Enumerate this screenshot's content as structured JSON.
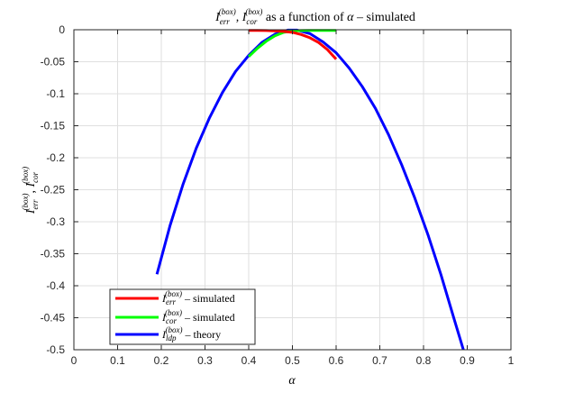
{
  "chart_data": {
    "type": "line",
    "title": {
      "sym1": "I",
      "sub1": "err",
      "sup1": "(box)",
      "sep": ", ",
      "sym2": "I",
      "sub2": "cor",
      "sup2": "(box)",
      "rest": " as a function of ",
      "alpha": "α",
      "tail": " – simulated"
    },
    "xlabel": "α",
    "ylabel": {
      "sym1": "I",
      "sub1": "err",
      "sup1": "(box)",
      "sep": ", ",
      "sym2": "I",
      "sub2": "cor",
      "sup2": "(box)"
    },
    "xlim": [
      0,
      1
    ],
    "ylim": [
      -0.5,
      0
    ],
    "xticks": [
      0,
      0.1,
      0.2,
      0.3,
      0.4,
      0.5,
      0.6,
      0.7,
      0.8,
      0.9,
      1
    ],
    "xtick_labels": [
      "0",
      "0.1",
      "0.2",
      "0.3",
      "0.4",
      "0.5",
      "0.6",
      "0.7",
      "0.8",
      "0.9",
      "1"
    ],
    "yticks": [
      0,
      -0.05,
      -0.1,
      -0.15,
      -0.2,
      -0.25,
      -0.3,
      -0.35,
      -0.4,
      -0.45,
      -0.5
    ],
    "ytick_labels": [
      "0",
      "-0.05",
      "-0.1",
      "-0.15",
      "-0.2",
      "-0.25",
      "-0.3",
      "-0.35",
      "-0.4",
      "-0.45",
      "-0.5"
    ],
    "grid": true,
    "legend_position": "bottom-left",
    "series": [
      {
        "name": "I_err^(box) – simulated",
        "legend": {
          "sym": "I",
          "sub": "err",
          "sup": "(box)",
          "rest": " – simulated"
        },
        "color": "#ff0000",
        "x": [
          0.4,
          0.42,
          0.44,
          0.46,
          0.48,
          0.5,
          0.52,
          0.54,
          0.56,
          0.58,
          0.6
        ],
        "y": [
          -0.001,
          -0.001,
          -0.0012,
          -0.0018,
          -0.0026,
          -0.004,
          -0.0075,
          -0.0125,
          -0.02,
          -0.031,
          -0.046
        ]
      },
      {
        "name": "I_cor^(box) – simulated",
        "legend": {
          "sym": "I",
          "sub": "cor",
          "sup": "(box)",
          "rest": " – simulated"
        },
        "color": "#00ff00",
        "x": [
          0.4,
          0.42,
          0.44,
          0.46,
          0.48,
          0.5,
          0.52,
          0.54,
          0.56,
          0.58,
          0.6
        ],
        "y": [
          -0.042,
          -0.029,
          -0.018,
          -0.0095,
          -0.004,
          -0.0018,
          -0.0013,
          -0.0011,
          -0.001,
          -0.001,
          -0.001
        ]
      },
      {
        "name": "I_ldp^(box) – theory",
        "legend": {
          "sym": "I",
          "sub": "ldp",
          "sup": "(box)",
          "rest": " – theory"
        },
        "color": "#0000ff",
        "x": [
          0.19,
          0.22,
          0.25,
          0.28,
          0.31,
          0.34,
          0.37,
          0.4,
          0.43,
          0.46,
          0.49,
          0.51,
          0.54,
          0.57,
          0.6,
          0.63,
          0.66,
          0.69,
          0.72,
          0.75,
          0.78,
          0.81,
          0.84,
          0.87,
          0.9,
          0.92
        ],
        "y": [
          -0.382,
          -0.306,
          -0.241,
          -0.185,
          -0.138,
          -0.098,
          -0.065,
          -0.04,
          -0.02,
          -0.007,
          -0.0005,
          -0.0005,
          -0.006,
          -0.019,
          -0.036,
          -0.06,
          -0.089,
          -0.123,
          -0.164,
          -0.211,
          -0.263,
          -0.32,
          -0.383,
          -0.452,
          -0.52,
          -0.572
        ]
      }
    ]
  }
}
